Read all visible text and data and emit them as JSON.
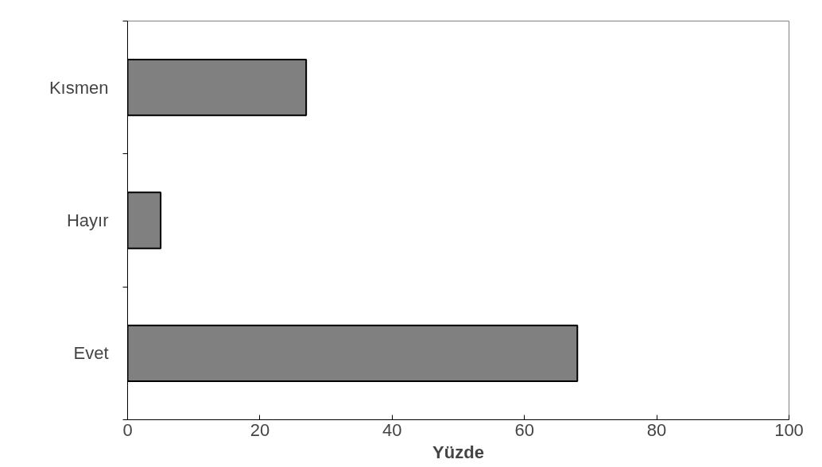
{
  "chart_data": {
    "type": "bar",
    "orientation": "horizontal",
    "xlabel": "Yüzde",
    "categories": [
      "Kısmen",
      "Hayır",
      "Evet"
    ],
    "values": [
      27,
      5,
      68
    ],
    "color": "#808080",
    "xlim": [
      0,
      100
    ],
    "xticks": [
      0,
      20,
      40,
      60,
      80,
      100
    ],
    "grid": false
  }
}
